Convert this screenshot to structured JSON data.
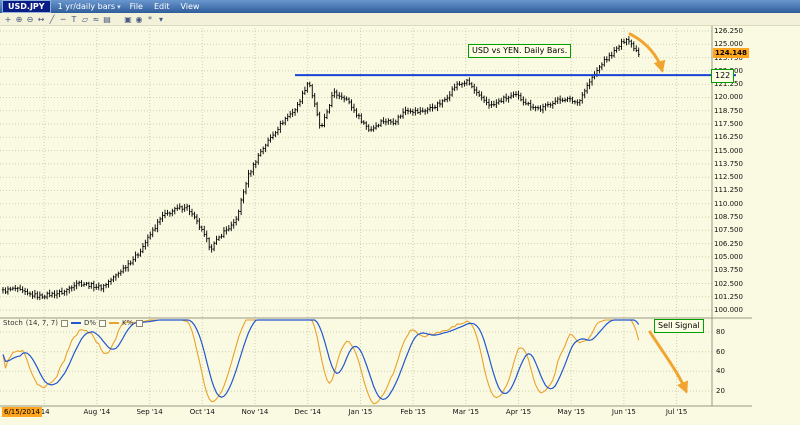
{
  "window": {
    "symbol": "USD.JPY",
    "timeframe": "1 yr/daily bars",
    "menus": [
      "File",
      "Edit",
      "View"
    ]
  },
  "toolbar": {
    "icons": [
      {
        "name": "crosshair-icon",
        "glyph": "+"
      },
      {
        "name": "zoom-in-icon",
        "glyph": "⊕"
      },
      {
        "name": "zoom-out-icon",
        "glyph": "⊖"
      },
      {
        "name": "pan-icon",
        "glyph": "↔"
      },
      {
        "name": "trendline-icon",
        "glyph": "╱"
      },
      {
        "name": "horizontal-line-icon",
        "glyph": "─"
      },
      {
        "name": "text-tool-icon",
        "glyph": "T"
      },
      {
        "name": "shape-tool-icon",
        "glyph": "▱"
      },
      {
        "name": "indicator-icon",
        "glyph": "≈"
      },
      {
        "name": "grid-icon",
        "glyph": "▤"
      },
      {
        "name": "print-icon",
        "glyph": "▣"
      },
      {
        "name": "snapshot-icon",
        "glyph": "◉"
      },
      {
        "name": "settings-icon",
        "glyph": "*"
      },
      {
        "name": "chevron-down-icon",
        "glyph": "▾"
      }
    ]
  },
  "chart_data": {
    "type": "ohlc-bar",
    "symbol": "USD.JPY",
    "timeframe": "1 yr/daily bars",
    "price_axis_ticks": [
      "126.250",
      "125.000",
      "123.750",
      "122.500",
      "121.250",
      "120.000",
      "118.750",
      "117.500",
      "116.250",
      "115.000",
      "113.750",
      "112.500",
      "111.250",
      "110.000",
      "108.750",
      "107.500",
      "106.250",
      "105.000",
      "103.750",
      "102.500",
      "101.250",
      "100.000"
    ],
    "x_labels": [
      "'14",
      "Aug '14",
      "Sep '14",
      "Oct '14",
      "Nov '14",
      "Dec '14",
      "Jan '15",
      "Feb '15",
      "Mar '15",
      "Apr '15",
      "May '15",
      "Jun '15",
      "Jul '15"
    ],
    "first_date_label": "6/15/2014",
    "last_price_label": "124.148",
    "last_price": 124.148,
    "weekly_closes": [
      101.8,
      102.0,
      101.5,
      101.3,
      101.5,
      101.7,
      102.6,
      102.4,
      102.1,
      103.0,
      104.1,
      105.2,
      107.0,
      108.8,
      109.4,
      109.8,
      108.0,
      105.8,
      107.3,
      108.2,
      112.5,
      114.8,
      116.4,
      117.9,
      119.0,
      121.6,
      116.9,
      120.4,
      120.0,
      118.3,
      116.9,
      117.8,
      117.7,
      118.9,
      118.6,
      119.0,
      119.6,
      121.1,
      121.5,
      120.0,
      119.2,
      119.9,
      120.2,
      119.3,
      118.9,
      119.6,
      119.9,
      119.5,
      121.5,
      123.2,
      124.3,
      125.6,
      124.15
    ],
    "bar_color": "#000000",
    "hline": {
      "value": 122.1,
      "label": "122",
      "color": "#1743D6"
    },
    "annotations": {
      "note": "USD vs YEN.  Daily Bars.",
      "sell_signal": "Sell Signal"
    },
    "arrow_color": "#F2A431",
    "stoch": {
      "name": "Stoch",
      "params": "(14, 7, 7)",
      "y_ticks": [
        "80",
        "60",
        "40",
        "20"
      ],
      "series": [
        {
          "name": "D%",
          "color": "#2257CF"
        },
        {
          "name": "K%",
          "color": "#E8A22E"
        }
      ]
    }
  }
}
